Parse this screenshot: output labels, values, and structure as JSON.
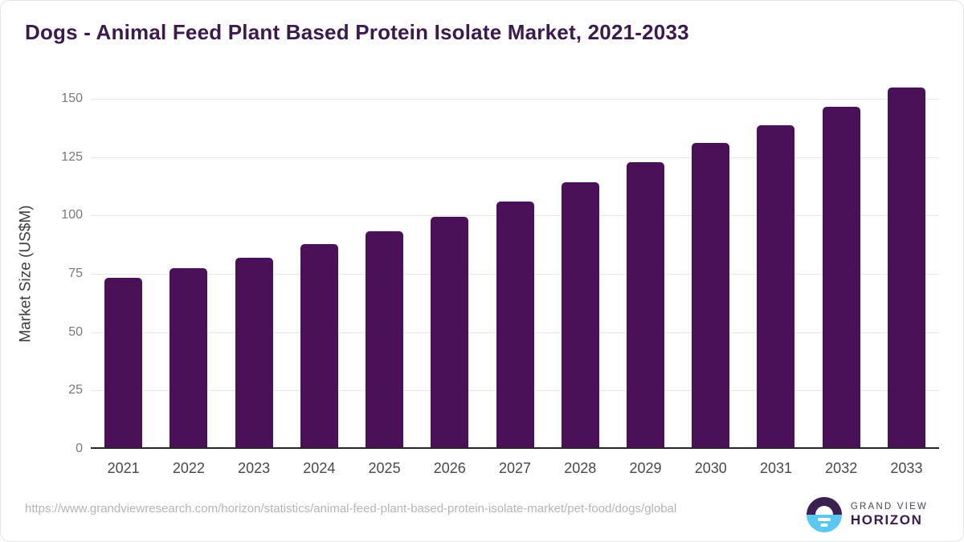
{
  "title": "Dogs - Animal Feed Plant Based Protein Isolate Market, 2021-2033",
  "source_url": "https://www.grandviewresearch.com/horizon/statistics/animal-feed-plant-based-protein-isolate-market/pet-food/dogs/global",
  "branding": {
    "line1": "GRAND VIEW",
    "line2": "HORIZON"
  },
  "colors": {
    "bar": "#4a1158",
    "title": "#3b1a4e",
    "gridline": "#e7e7e7",
    "axis_line": "#262626",
    "y_tick": "#787878",
    "x_label": "#484848",
    "url_text": "#b4b4b4",
    "logo_purple": "#3a2151",
    "logo_blue": "#5ac8f0"
  },
  "chart_data": {
    "type": "bar",
    "title": "Dogs - Animal Feed Plant Based Protein Isolate Market, 2021-2033",
    "categories": [
      "2021",
      "2022",
      "2023",
      "2024",
      "2025",
      "2026",
      "2027",
      "2028",
      "2029",
      "2030",
      "2031",
      "2032",
      "2033"
    ],
    "values": [
      72.7,
      76.6,
      81.2,
      86.9,
      92.5,
      98.7,
      105.4,
      113.6,
      122.0,
      130.3,
      138.0,
      145.8,
      154.1
    ],
    "xlabel": "",
    "ylabel": "Market Size (US$M)",
    "ylim": [
      0,
      150
    ],
    "yticks": [
      0,
      25,
      50,
      75,
      100,
      125,
      150
    ],
    "grid": true,
    "legend": false,
    "bar_color": "#4a1158"
  }
}
